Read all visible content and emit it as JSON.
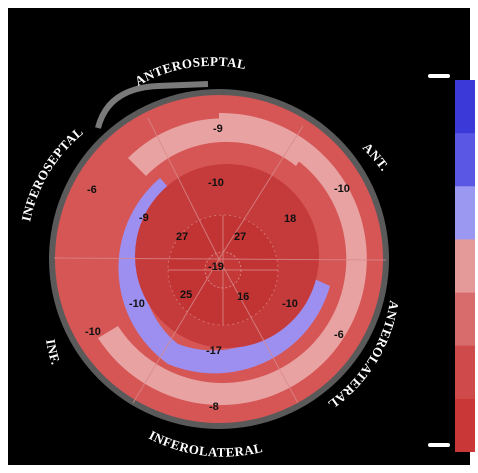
{
  "wall_labels": {
    "anteroseptal": "ANTEROSEPTAL",
    "ant": "ANT.",
    "anterolateral": "ANTEROLATERAL",
    "inferolateral": "INFEROLATERAL",
    "inf": "INF.",
    "inferoseptal": "INFEROSEPTAL"
  },
  "segments": {
    "basal": [
      "-9",
      "-10",
      "-6",
      "-8",
      "-10",
      "-6"
    ],
    "mid": [
      "-10",
      "18",
      "-10",
      "-17",
      "-10",
      "-9"
    ],
    "apical": [
      "27",
      "16",
      "25",
      "27"
    ],
    "apex": "-19"
  },
  "colors": {
    "dark_red": "#c53a3b",
    "mid_red": "#d65555",
    "light_pink": "#e8a2a2",
    "lavender": "#9d8ff0",
    "outer_ring": "#6d6d6d",
    "scale": [
      "#3b3ad8",
      "#5a57e4",
      "#9a98f0",
      "#e59a9a",
      "#d86b6b",
      "#cf4b4b",
      "#c93737"
    ]
  }
}
